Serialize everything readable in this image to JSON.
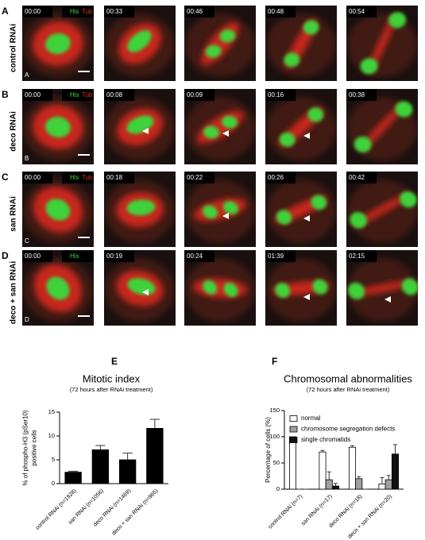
{
  "rows": [
    {
      "label": "A",
      "name": "control RNAi",
      "inner_label": "A",
      "channels": [
        "His",
        "Tub"
      ],
      "times": [
        "00:00",
        "00:33",
        "00:46",
        "00:48",
        "00:54"
      ]
    },
    {
      "label": "B",
      "name": "deco RNAi",
      "inner_label": "B",
      "channels": [
        "His",
        "Tub"
      ],
      "times": [
        "00:00",
        "00:08",
        "00:09",
        "00:16",
        "00:38"
      ]
    },
    {
      "label": "C",
      "name": "san RNAi",
      "inner_label": "C",
      "channels": [
        "His",
        "Tub"
      ],
      "times": [
        "00:00",
        "00:18",
        "00:22",
        "00:26",
        "00:42"
      ]
    },
    {
      "label": "D",
      "name": "deco + san RNAi",
      "inner_label": "D",
      "channels": [
        "His"
      ],
      "times": [
        "00:00",
        "00:19",
        "00:24",
        "01:39",
        "02:15"
      ]
    }
  ],
  "chart_data": [
    {
      "type": "bar",
      "panel_label": "E",
      "title": "Mitotic index",
      "subtitle": "(72 hours after RNAi treatment)",
      "ylabel": [
        "% of phospho-H3 (pSer10)",
        "positive cells"
      ],
      "categories": [
        "control RNAi (n=1928)",
        "san RNAi (n=1056)",
        "deco RNAi (n=1469)",
        "deco + san RNAi (n=965)"
      ],
      "series": [
        {
          "color": "#000000",
          "values": [
            2.4,
            7.1,
            5.0,
            11.6
          ],
          "errors": [
            0.2,
            0.9,
            1.4,
            1.9
          ]
        }
      ],
      "ylim": [
        0,
        15
      ],
      "yticks": [
        0,
        5,
        10,
        15
      ]
    },
    {
      "type": "bar",
      "panel_label": "F",
      "title": "Chromosomal abnormalities",
      "subtitle": "(72 hours after RNAi treatment)",
      "ylabel": [
        "Percentage of cells (%)"
      ],
      "categories": [
        "control RNAi (n=7)",
        "san RNAi (n=17)",
        "deco RNAi (n=18)",
        "deco + san RNAi (n=20)"
      ],
      "series": [
        {
          "name": "normal",
          "color": "#ffffff",
          "values": [
            100,
            71,
            80,
            10
          ],
          "errors": [
            0,
            3,
            3,
            12
          ]
        },
        {
          "name": "chromosome segregation defects",
          "color": "#a0a0a0",
          "values": [
            0,
            18,
            20,
            18
          ],
          "errors": [
            0,
            15,
            4,
            8
          ]
        },
        {
          "name": "single chromatids",
          "color": "#111111",
          "values": [
            0,
            6,
            0,
            67
          ],
          "errors": [
            0,
            5,
            0,
            18
          ]
        }
      ],
      "ylim": [
        0,
        150
      ],
      "yticks": [
        0,
        50,
        100,
        150
      ],
      "legend": "upper left"
    }
  ]
}
